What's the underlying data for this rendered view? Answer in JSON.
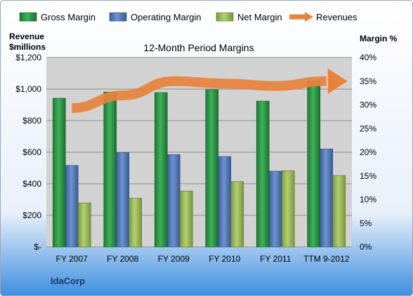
{
  "chart_data": {
    "type": "bar",
    "title": "12-Month Period Margins",
    "company": "IdaCorp",
    "categories": [
      "FY 2007",
      "FY 2008",
      "FY 2009",
      "FY 2010",
      "FY 2011",
      "TTM 9-2012"
    ],
    "left_axis": {
      "label_line1": "Revenue",
      "label_line2": "$millions",
      "range": [
        0,
        1200
      ],
      "ticks": [
        0,
        200,
        400,
        600,
        800,
        1000,
        1200
      ],
      "tick_labels": [
        "$-",
        "$200",
        "$400",
        "$600",
        "$800",
        "$1,000",
        "$1,200"
      ]
    },
    "right_axis": {
      "label": "Margin %",
      "range": [
        0,
        40
      ],
      "ticks": [
        0,
        5,
        10,
        15,
        20,
        25,
        30,
        35,
        40
      ],
      "tick_labels": [
        "0%",
        "5%",
        "10%",
        "15%",
        "20%",
        "25%",
        "30%",
        "35%",
        "40%"
      ]
    },
    "series": [
      {
        "name": "Gross Margin",
        "axis": "right",
        "color": "#2e9a4a",
        "values": [
          31.4,
          32.7,
          32.6,
          33.2,
          30.8,
          35.0
        ]
      },
      {
        "name": "Operating Margin",
        "axis": "right",
        "color": "#4f75b8",
        "values": [
          17.2,
          19.9,
          19.5,
          19.1,
          16.0,
          20.7
        ]
      },
      {
        "name": "Net Margin",
        "axis": "right",
        "color": "#9bbb59",
        "values": [
          9.3,
          10.3,
          11.8,
          13.8,
          16.1,
          15.1
        ]
      },
      {
        "name": "Revenues",
        "axis": "left",
        "type": "line",
        "color": "#e8823a",
        "values": [
          880,
          960,
          1050,
          1035,
          1020,
          1050
        ]
      }
    ],
    "legend_position": "top",
    "grid": true
  }
}
